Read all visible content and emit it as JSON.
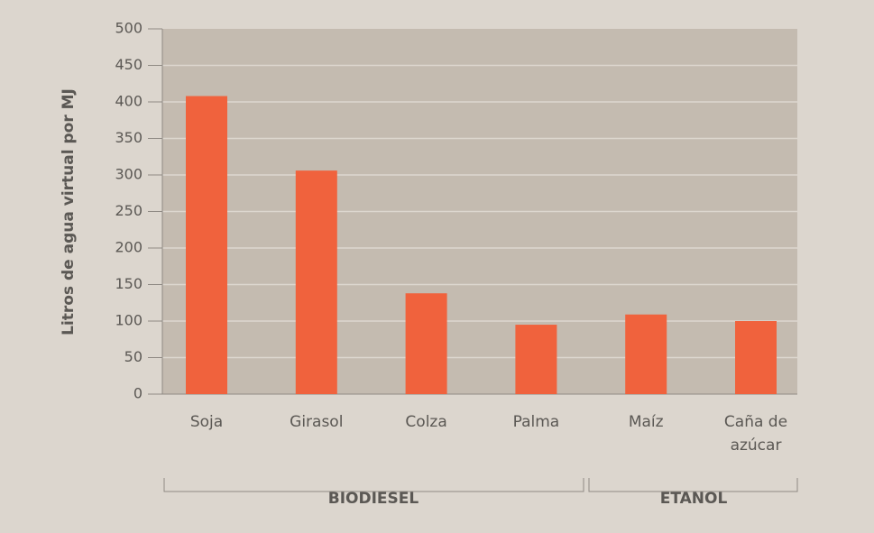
{
  "chart_data": {
    "type": "bar",
    "y_label": "Litros de agua virtual por MJ",
    "categories": [
      "Soja",
      "Girasol",
      "Colza",
      "Palma",
      "Maíz",
      "Caña de azúcar"
    ],
    "values": [
      408,
      306,
      138,
      95,
      109,
      100
    ],
    "color": "#f0623d",
    "ylim": [
      0,
      500
    ],
    "yticks": [
      0,
      50,
      100,
      150,
      200,
      250,
      300,
      350,
      400,
      450,
      500
    ],
    "grid": true,
    "groups": [
      "BIODIESEL",
      "ETANOL"
    ]
  }
}
